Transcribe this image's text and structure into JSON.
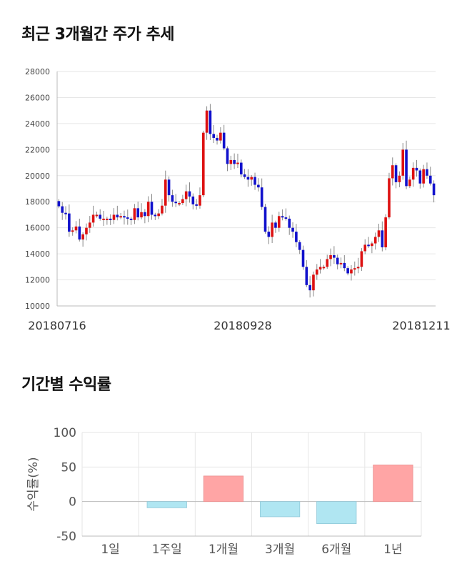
{
  "sections": {
    "price_title": "최근 3개월간 주가 추세",
    "returns_title": "기간별 수익률"
  },
  "colors": {
    "up": "#dd1111",
    "down": "#1111cc",
    "positive_bar": "#ffa5a5",
    "negative_bar": "#b0e6f2"
  },
  "chart_data": [
    {
      "type": "candlestick",
      "title": "",
      "ylim": [
        10000,
        28000
      ],
      "yticks": [
        10000,
        12000,
        14000,
        16000,
        18000,
        20000,
        22000,
        24000,
        26000,
        28000
      ],
      "xtick_labels": [
        "20180716",
        "20180928",
        "20181211"
      ],
      "grid": true,
      "closes": [
        17650,
        17150,
        17100,
        15700,
        15800,
        16100,
        15100,
        15500,
        16000,
        16400,
        17000,
        17000,
        16700,
        16700,
        16700,
        16600,
        17000,
        16800,
        16900,
        16800,
        16700,
        16600,
        17500,
        16800,
        17200,
        16900,
        18000,
        17000,
        16900,
        17100,
        17700,
        19700,
        18500,
        18000,
        17900,
        17900,
        18200,
        18800,
        18400,
        17800,
        17700,
        18500,
        23300,
        25000,
        23200,
        22900,
        22700,
        23300,
        22100,
        20900,
        21200,
        20900,
        21000,
        20100,
        19900,
        19700,
        19900,
        19300,
        19100,
        17600,
        15700,
        15300,
        16400,
        16000,
        16900,
        16800,
        16700,
        16000,
        15700,
        14900,
        14300,
        13000,
        11600,
        11200,
        12400,
        12800,
        13000,
        13000,
        13600,
        13900,
        13700,
        13200,
        13300,
        12900,
        12500,
        12800,
        12900,
        13000,
        14200,
        14700,
        14600,
        14800,
        15300,
        15800,
        14500,
        16800,
        19800,
        20800,
        19500,
        20000,
        22000,
        19200,
        19700,
        20600,
        20400,
        19400,
        20500,
        20000,
        19400,
        18500
      ]
    },
    {
      "type": "bar",
      "title": "",
      "ylabel": "수익률(%)",
      "ylim": [
        -50,
        100
      ],
      "yticks": [
        -50,
        0,
        50,
        100
      ],
      "categories": [
        "1일",
        "1주일",
        "1개월",
        "3개월",
        "6개월",
        "1년"
      ],
      "values": [
        0,
        -9,
        37,
        -22,
        -32,
        53
      ]
    }
  ]
}
